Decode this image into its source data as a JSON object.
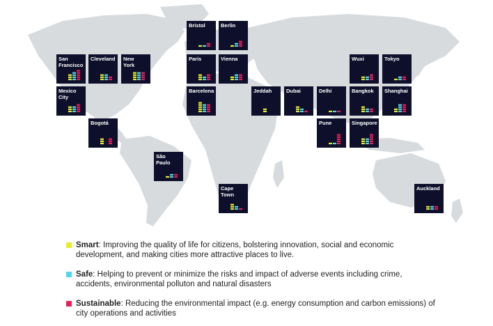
{
  "colors": {
    "smart": "#e8ec2c",
    "safe": "#4fd8ec",
    "sustainable": "#e8205a",
    "panel": "#0e0f2a",
    "map": "#d8dbde"
  },
  "chart_data": {
    "type": "bar",
    "title": "",
    "series_names": [
      "Smart",
      "Safe",
      "Sustainable"
    ],
    "cities": [
      {
        "name": "Bristol",
        "values": [
          1,
          1,
          2
        ]
      },
      {
        "name": "Berlin",
        "values": [
          1,
          2,
          3
        ]
      },
      {
        "name": "San Francisco",
        "values": [
          3,
          4,
          5
        ]
      },
      {
        "name": "Cleveland",
        "values": [
          3,
          3,
          2
        ]
      },
      {
        "name": "New York",
        "values": [
          4,
          4,
          4
        ]
      },
      {
        "name": "Paris",
        "values": [
          3,
          2,
          3
        ]
      },
      {
        "name": "Vienna",
        "values": [
          2,
          3,
          3
        ]
      },
      {
        "name": "Wuxi",
        "values": [
          2,
          2,
          3
        ]
      },
      {
        "name": "Tokyo",
        "values": [
          1,
          2,
          2
        ]
      },
      {
        "name": "Mexico City",
        "values": [
          3,
          3,
          4
        ]
      },
      {
        "name": "Barcelona",
        "values": [
          5,
          4,
          4
        ]
      },
      {
        "name": "Jeddah",
        "values": [
          2,
          0,
          0
        ]
      },
      {
        "name": "Dubai",
        "values": [
          3,
          2,
          1
        ]
      },
      {
        "name": "Delhi",
        "values": [
          1,
          1,
          1
        ]
      },
      {
        "name": "Bangkok",
        "values": [
          3,
          2,
          2
        ]
      },
      {
        "name": "Shanghai",
        "values": [
          2,
          4,
          4
        ]
      },
      {
        "name": "Bogotá",
        "values": [
          3,
          0,
          3
        ]
      },
      {
        "name": "Pune",
        "values": [
          1,
          1,
          5
        ]
      },
      {
        "name": "Singapore",
        "values": [
          3,
          3,
          5
        ]
      },
      {
        "name": "São Paulo",
        "values": [
          1,
          2,
          2
        ]
      },
      {
        "name": "Cape Town",
        "values": [
          3,
          2,
          1
        ]
      },
      {
        "name": "Auckland",
        "values": [
          2,
          2,
          2
        ]
      }
    ],
    "legend": "bottom"
  },
  "legend": [
    {
      "term": "Smart",
      "text": ": Improving the quality of life for citizens, bolstering innovation, social and economic development, and making cities more attractive places to live."
    },
    {
      "term": "Safe",
      "text": ": Helping to prevent or minimize the risks and impact of adverse events including crime, accidents, environmental polluton and natural disasters"
    },
    {
      "term": "Sustainable",
      "text": ": Reducing the environmental impact (e.g. energy consumption and carbon emissions) of city operations and activities"
    }
  ]
}
